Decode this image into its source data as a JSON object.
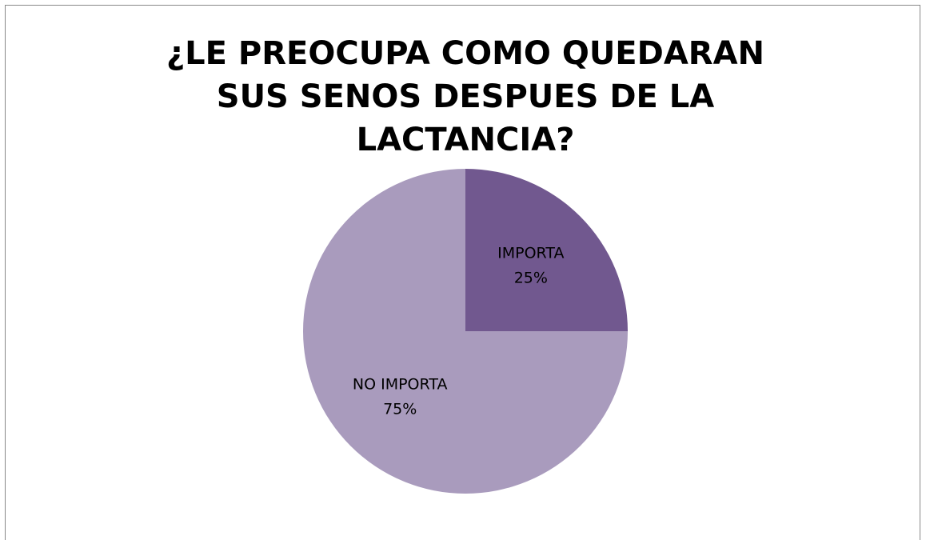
{
  "chart_data": {
    "type": "pie",
    "title": "¿LE PREOCUPA COMO QUEDARAN SUS SENOS DESPUES DE LA LACTANCIA?",
    "categories": [
      "IMPORTA",
      "NO IMPORTA"
    ],
    "values": [
      25,
      75
    ],
    "value_labels": [
      "25%",
      "75%"
    ],
    "colors": [
      "#71588f",
      "#a99bbd"
    ]
  }
}
